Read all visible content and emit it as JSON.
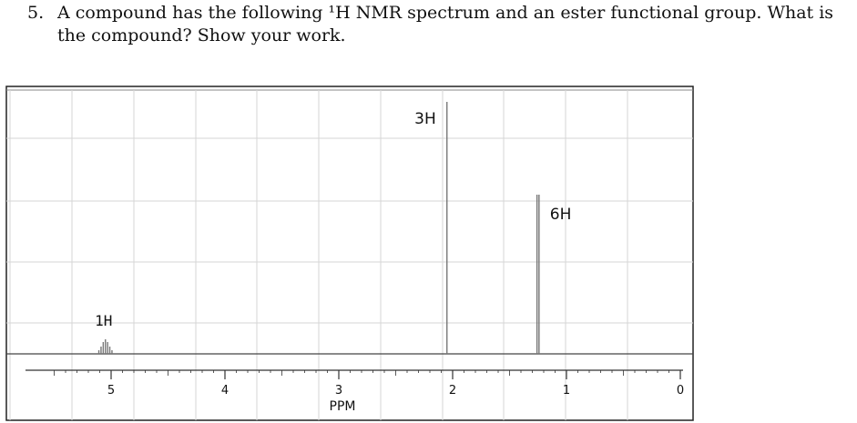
{
  "question": {
    "number": "5.",
    "text": "A compound has the following ¹H NMR spectrum and an ester functional group. What is the compound? Show your work."
  },
  "chart_data": {
    "type": "line",
    "title": "",
    "xlabel": "PPM",
    "ylabel": "",
    "xlim": [
      0,
      5.5
    ],
    "x_reversed": true,
    "ticks": [
      "5",
      "4",
      "3",
      "2",
      "1",
      "0"
    ],
    "grid": true,
    "peaks": [
      {
        "shift": 5.05,
        "integration": "1H",
        "multiplicity": "septet"
      },
      {
        "shift": 2.05,
        "integration": "3H",
        "multiplicity": "singlet"
      },
      {
        "shift": 1.25,
        "integration": "6H",
        "multiplicity": "doublet"
      }
    ],
    "colors": {
      "trace": "#777777",
      "grid": "#d6d6d6",
      "frame": "#222222"
    }
  }
}
